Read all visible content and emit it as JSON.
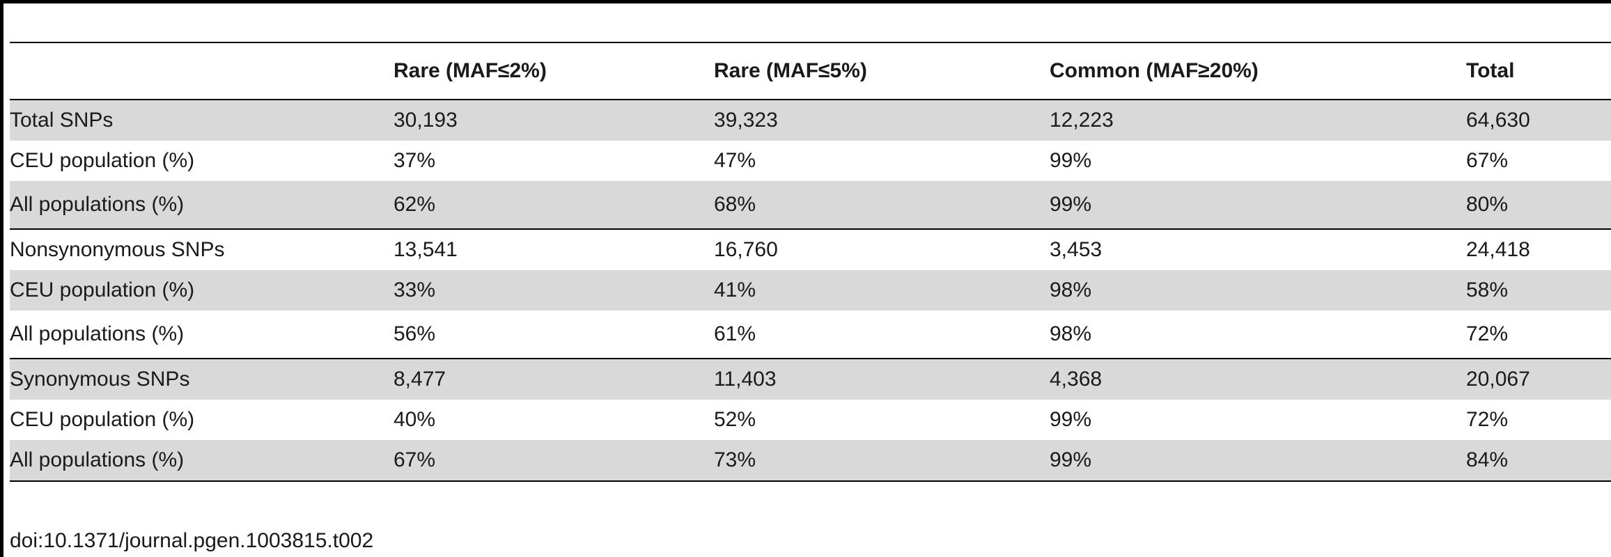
{
  "table": {
    "headers": [
      "",
      "Rare (MAF≤2%)",
      "Rare (MAF≤5%)",
      "Common (MAF≥20%)",
      "Total"
    ],
    "rows": [
      [
        "Total SNPs",
        "30,193",
        "39,323",
        "12,223",
        "64,630"
      ],
      [
        "CEU population (%)",
        "37%",
        "47%",
        "99%",
        "67%"
      ],
      [
        "All populations (%)",
        "62%",
        "68%",
        "99%",
        "80%"
      ],
      [
        "Nonsynonymous SNPs",
        "13,541",
        "16,760",
        "3,453",
        "24,418"
      ],
      [
        "CEU population (%)",
        "33%",
        "41%",
        "98%",
        "58%"
      ],
      [
        "All populations (%)",
        "56%",
        "61%",
        "98%",
        "72%"
      ],
      [
        "Synonymous SNPs",
        "8,477",
        "11,403",
        "4,368",
        "20,067"
      ],
      [
        "CEU population (%)",
        "40%",
        "52%",
        "99%",
        "72%"
      ],
      [
        "All populations (%)",
        "67%",
        "73%",
        "99%",
        "84%"
      ]
    ]
  },
  "footer": {
    "doi": "doi:10.1371/journal.pgen.1003815.t002"
  }
}
